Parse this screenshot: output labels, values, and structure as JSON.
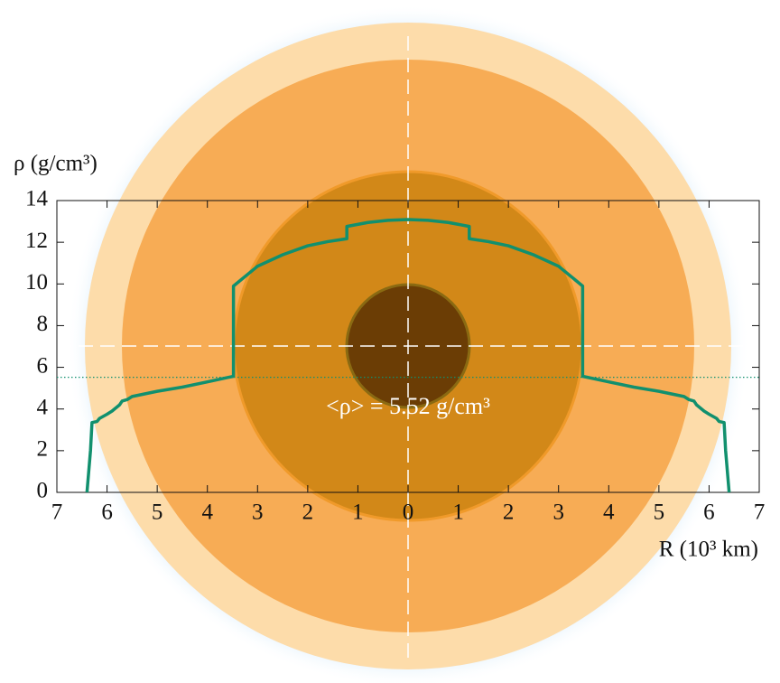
{
  "chart_data": {
    "type": "line",
    "y_label": "ρ (g/cm³)",
    "x_label": "R (10³ km)",
    "annotation": "<ρ> = 5.52 g/cm³",
    "xlim": [
      -7,
      7
    ],
    "ylim": [
      0,
      14
    ],
    "xticks": [
      {
        "value": -7,
        "label": "7"
      },
      {
        "value": -6,
        "label": "6"
      },
      {
        "value": -5,
        "label": "5"
      },
      {
        "value": -4,
        "label": "4"
      },
      {
        "value": -3,
        "label": "3"
      },
      {
        "value": -2,
        "label": "2"
      },
      {
        "value": -1,
        "label": "1"
      },
      0,
      1,
      2,
      3,
      4,
      5,
      6,
      7
    ],
    "yticks": [
      0,
      2,
      4,
      6,
      8,
      10,
      12,
      14
    ],
    "x": [
      -6.4,
      -6.33,
      -6.3,
      -6.2,
      -6.15,
      -6.0,
      -5.9,
      -5.75,
      -5.7,
      -5.6,
      -5.5,
      -5.0,
      -4.5,
      -4.0,
      -3.48,
      -3.48,
      -3.0,
      -2.5,
      -2.0,
      -1.6,
      -1.22,
      -1.22,
      -0.8,
      -0.4,
      0,
      0.4,
      0.8,
      1.22,
      1.22,
      1.6,
      2.0,
      2.5,
      3.0,
      3.48,
      3.48,
      4.0,
      4.5,
      5.0,
      5.5,
      5.6,
      5.7,
      5.75,
      5.9,
      6.0,
      6.15,
      6.2,
      6.3,
      6.33,
      6.4
    ],
    "series": [
      {
        "color": "#11906e",
        "values": [
          0,
          2.0,
          3.35,
          3.4,
          3.55,
          3.75,
          3.9,
          4.2,
          4.38,
          4.45,
          4.6,
          4.85,
          5.05,
          5.3,
          5.57,
          9.9,
          10.85,
          11.4,
          11.83,
          12.03,
          12.17,
          12.76,
          12.95,
          13.05,
          13.09,
          13.05,
          12.95,
          12.76,
          12.17,
          12.03,
          11.83,
          11.4,
          10.85,
          9.9,
          5.57,
          5.3,
          5.05,
          4.85,
          4.6,
          4.45,
          4.38,
          4.2,
          3.9,
          3.75,
          3.55,
          3.4,
          3.35,
          2.0,
          0
        ]
      }
    ],
    "reference_line": {
      "value": 5.52,
      "color": "#11906e"
    }
  }
}
